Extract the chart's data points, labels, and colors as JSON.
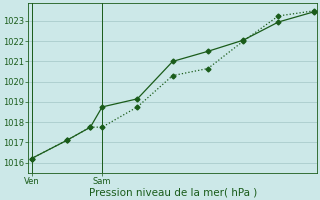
{
  "title": "Pression niveau de la mer( hPa )",
  "bg_color": "#cce8e8",
  "grid_color": "#aacccc",
  "line_color": "#1a5c1a",
  "ylim": [
    1015.5,
    1023.9
  ],
  "yticks": [
    1016,
    1017,
    1018,
    1019,
    1020,
    1021,
    1022,
    1023
  ],
  "xtick_labels": [
    "Ven",
    "Sam"
  ],
  "xtick_positions": [
    0,
    6
  ],
  "vline_positions": [
    0,
    6
  ],
  "xlim": [
    -0.3,
    24.3
  ],
  "series1_x": [
    0,
    3,
    5,
    6,
    9,
    12,
    15,
    18,
    21,
    24
  ],
  "series1_y": [
    1016.2,
    1017.1,
    1017.75,
    1017.75,
    1018.75,
    1020.3,
    1020.65,
    1022.0,
    1023.25,
    1023.5
  ],
  "series2_x": [
    0,
    3,
    5,
    6,
    9,
    12,
    15,
    18,
    21,
    24
  ],
  "series2_y": [
    1016.2,
    1017.1,
    1017.75,
    1018.75,
    1019.15,
    1021.0,
    1021.5,
    1022.05,
    1022.95,
    1023.45
  ],
  "num_x_total": 24,
  "marker_size": 2.5,
  "linewidth": 0.9,
  "ylabel_fontsize": 6,
  "xlabel_fontsize": 7.5
}
